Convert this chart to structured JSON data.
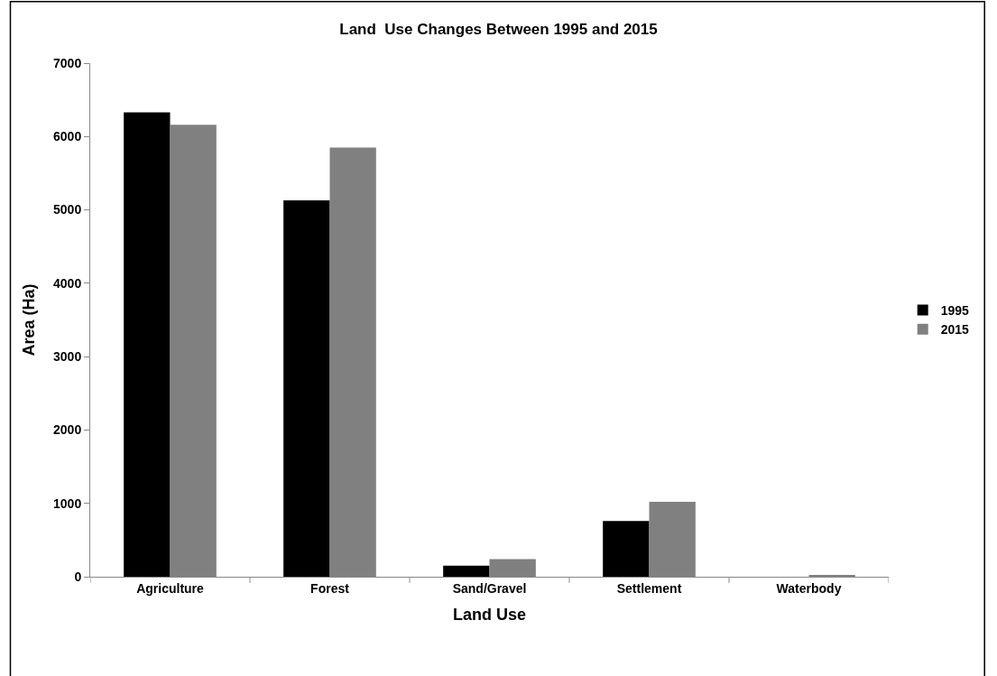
{
  "chart_data": {
    "type": "bar",
    "title": "Land  Use Changes Between 1995 and 2015",
    "xlabel": "Land Use",
    "ylabel": "Area (Ha)",
    "categories": [
      "Agriculture",
      "Forest",
      "Sand/Gravel",
      "Settlement",
      "Waterbody"
    ],
    "series": [
      {
        "name": "1995",
        "color": "#000000",
        "values": [
          6330,
          5130,
          150,
          760,
          0
        ]
      },
      {
        "name": "2015",
        "color": "#808080",
        "values": [
          6160,
          5850,
          240,
          1020,
          20
        ]
      }
    ],
    "ylim": [
      0,
      7000
    ],
    "yticks": [
      0,
      1000,
      2000,
      3000,
      4000,
      5000,
      6000,
      7000
    ],
    "legend": "right"
  }
}
